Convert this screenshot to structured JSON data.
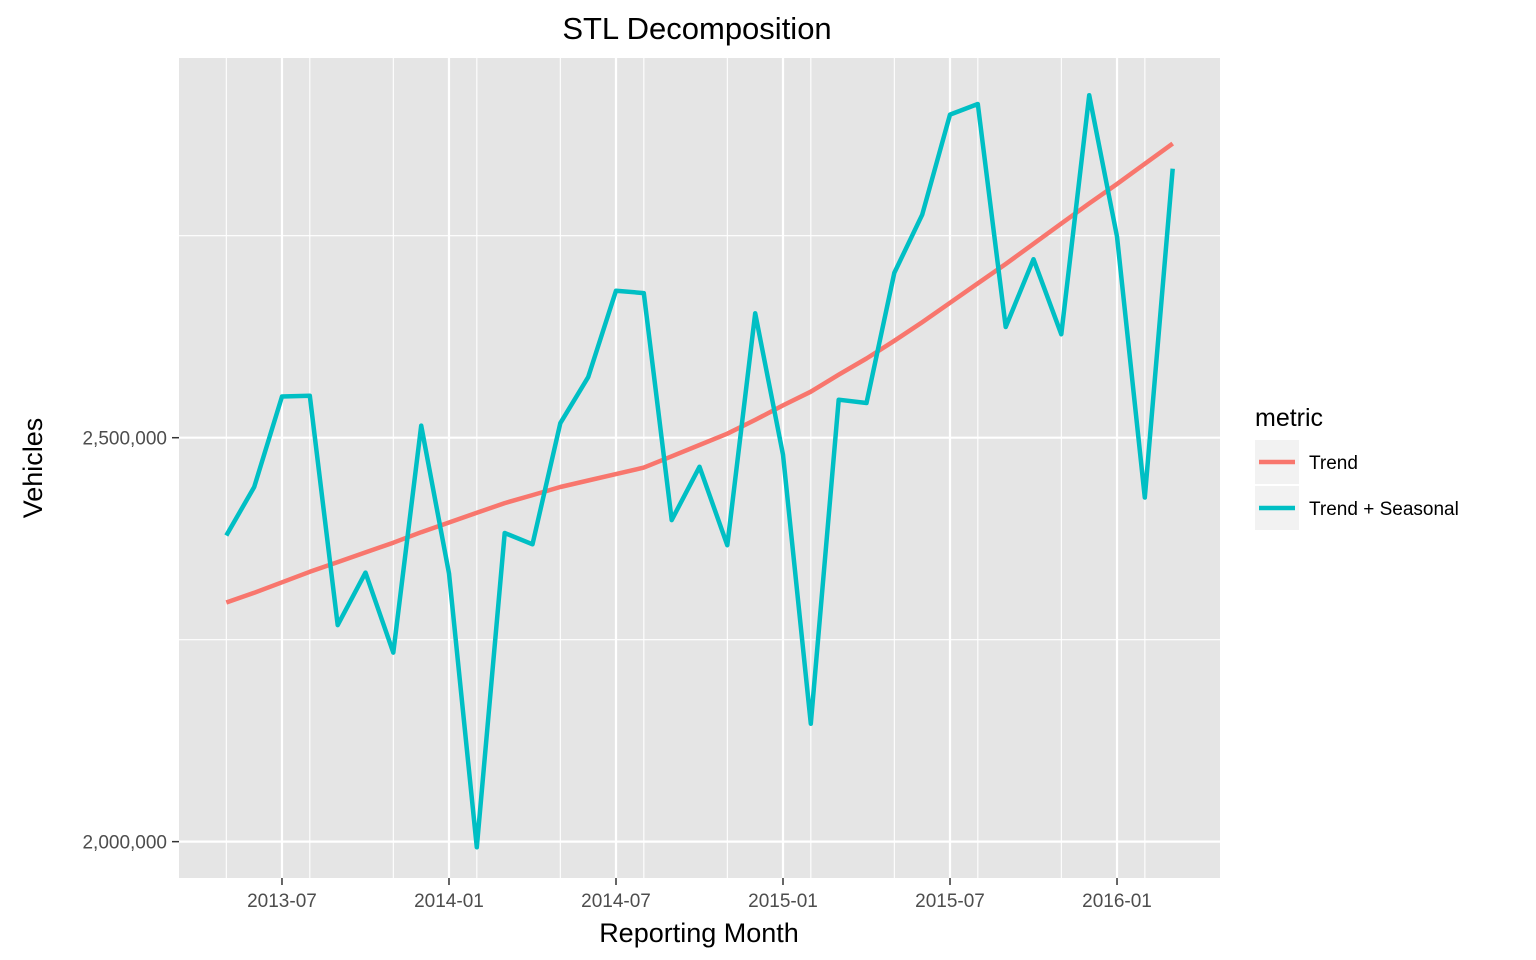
{
  "chart_data": {
    "type": "line",
    "title": "STL Decomposition",
    "xlabel": "Reporting Month",
    "ylabel": "Vehicles",
    "x": [
      "2013-05",
      "2013-06",
      "2013-07",
      "2013-08",
      "2013-09",
      "2013-10",
      "2013-11",
      "2013-12",
      "2014-01",
      "2014-02",
      "2014-03",
      "2014-04",
      "2014-05",
      "2014-06",
      "2014-07",
      "2014-08",
      "2014-09",
      "2014-10",
      "2014-11",
      "2014-12",
      "2015-01",
      "2015-02",
      "2015-03",
      "2015-04",
      "2015-05",
      "2015-06",
      "2015-07",
      "2015-08",
      "2015-09",
      "2015-10",
      "2015-11",
      "2015-12",
      "2016-01",
      "2016-02",
      "2016-03"
    ],
    "series": [
      {
        "name": "Trend",
        "color": "#F8766D",
        "values": [
          2296000,
          2308000,
          2321000,
          2334000,
          2346000,
          2358000,
          2370000,
          2383000,
          2395000,
          2407000,
          2419000,
          2429000,
          2439000,
          2447000,
          2455000,
          2463000,
          2477000,
          2491000,
          2505000,
          2522000,
          2540000,
          2557000,
          2578000,
          2598000,
          2620000,
          2643000,
          2667000,
          2691000,
          2715000,
          2740000,
          2765000,
          2790000,
          2814000,
          2839000,
          2864000
        ]
      },
      {
        "name": "Trend + Seasonal",
        "color": "#00BFC4",
        "values": [
          2379000,
          2439000,
          2551000,
          2552000,
          2268000,
          2333000,
          2234000,
          2515000,
          2332000,
          1993000,
          2382000,
          2368000,
          2518000,
          2575000,
          2682000,
          2679000,
          2398000,
          2464000,
          2367000,
          2654000,
          2479000,
          2146000,
          2547000,
          2543000,
          2704000,
          2776000,
          2900000,
          2913000,
          2637000,
          2721000,
          2628000,
          2924000,
          2749000,
          2426000,
          2833000
        ]
      }
    ],
    "xticks": [
      "2013-07",
      "2014-01",
      "2014-07",
      "2015-01",
      "2015-07",
      "2016-01"
    ],
    "ytick_values": [
      2000000,
      2500000
    ],
    "ytick_labels": [
      "2,000,000",
      "2,500,000"
    ],
    "ylim": [
      1955000,
      2970000
    ],
    "legend": {
      "title": "metric",
      "position": "right"
    },
    "grid": true,
    "panel_background": "#E5E5E5",
    "grid_color": "#FFFFFF"
  }
}
